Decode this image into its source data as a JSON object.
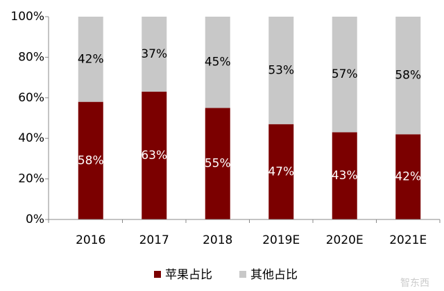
{
  "chart_data": {
    "type": "stacked_bar",
    "categories": [
      "2016",
      "2017",
      "2018",
      "2019E",
      "2020E",
      "2021E"
    ],
    "series": [
      {
        "name": "苹果占比",
        "color": "#7b0000",
        "values": [
          58,
          63,
          55,
          47,
          43,
          42
        ],
        "value_labels": [
          "58%",
          "63%",
          "55%",
          "47%",
          "43%",
          "42%"
        ]
      },
      {
        "name": "其他占比",
        "color": "#c8c8c8",
        "values": [
          42,
          37,
          45,
          53,
          57,
          58
        ],
        "value_labels": [
          "42%",
          "37%",
          "45%",
          "53%",
          "57%",
          "58%"
        ]
      }
    ],
    "ylim": [
      0,
      100
    ],
    "yticks": [
      {
        "value": 0,
        "label": "0%"
      },
      {
        "value": 20,
        "label": "20%"
      },
      {
        "value": 40,
        "label": "40%"
      },
      {
        "value": 60,
        "label": "60%"
      },
      {
        "value": 80,
        "label": "80%"
      },
      {
        "value": 100,
        "label": "100%"
      }
    ],
    "grid": false,
    "legend": "bottom",
    "watermark": "智东西"
  }
}
